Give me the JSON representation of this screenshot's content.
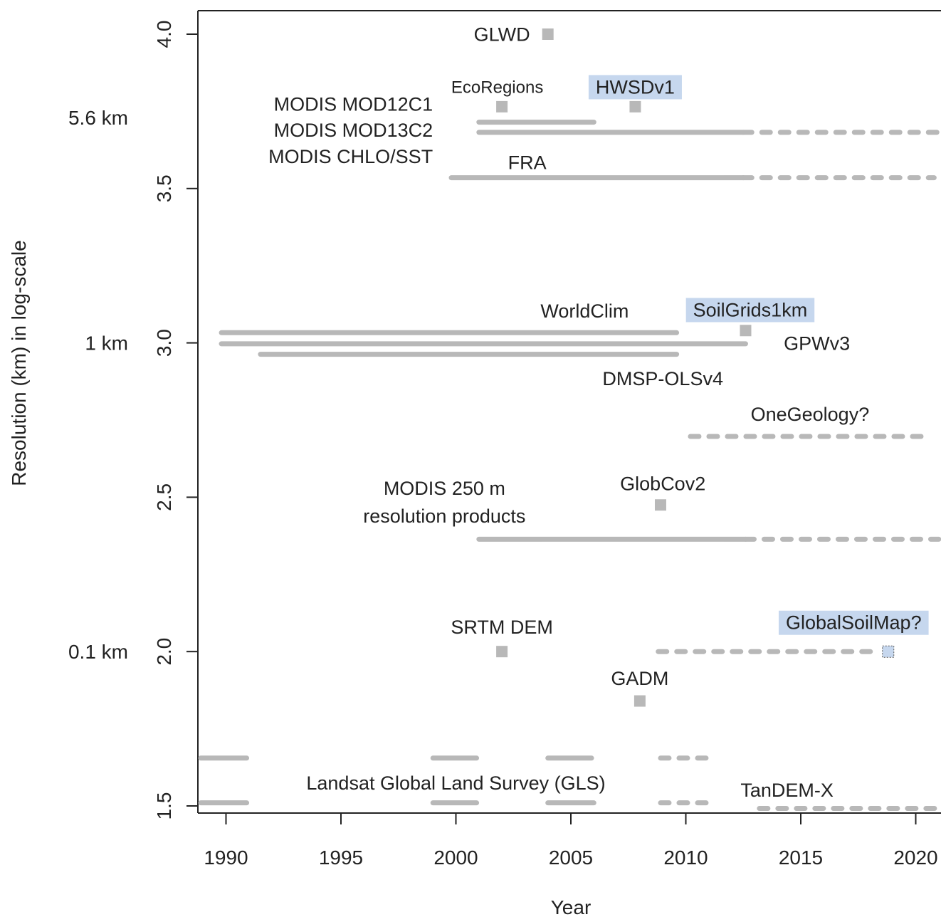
{
  "chart_data": {
    "type": "timeline",
    "xlabel": "Year",
    "ylabel": "Resolution (km) in log-scale",
    "xlim": [
      1988.9,
      2021
    ],
    "ylim": [
      1.48,
      4.08
    ],
    "x_ticks": [
      1990,
      1995,
      2000,
      2005,
      2010,
      2015,
      2020
    ],
    "y_ticks": [
      1.5,
      2.0,
      2.5,
      3.0,
      3.5,
      4.0
    ],
    "y_side_labels": [
      {
        "y": 3.73,
        "text": "5.6 km"
      },
      {
        "y": 3.0,
        "text": "1 km"
      },
      {
        "y": 2.0,
        "text": "0.1 km"
      }
    ],
    "colors": {
      "mark": "#b8b8b8",
      "highlight": "#c6d7ee",
      "axis": "#222222"
    },
    "segments": [
      {
        "name": "MODIS MOD12C1",
        "y": 3.715,
        "x0": 2001,
        "x1": 2006,
        "style": "solid",
        "width": 7
      },
      {
        "name": "MODIS MOD13C2",
        "y": 3.682,
        "x0": 2001,
        "x1": 2012.5,
        "style": "solid",
        "width": 7
      },
      {
        "name": "MODIS MOD13C2 (planned)",
        "y": 3.682,
        "x0": 2012.5,
        "x1": 2021,
        "style": "dashed",
        "width": 7
      },
      {
        "name": "MODIS CHLO/SST",
        "y": 3.535,
        "x0": 1999.8,
        "x1": 2012.5,
        "style": "solid",
        "width": 7
      },
      {
        "name": "MODIS CHLO/SST (planned)",
        "y": 3.535,
        "x0": 2012.5,
        "x1": 2020.8,
        "style": "dashed",
        "width": 7
      },
      {
        "name": "WorldClim",
        "y": 3.033,
        "x0": 1989.8,
        "x1": 2009.6,
        "style": "solid",
        "width": 7
      },
      {
        "name": "GPWv3",
        "y": 2.997,
        "x0": 1989.8,
        "x1": 2012.6,
        "style": "solid",
        "width": 7
      },
      {
        "name": "DMSP-OLSv4",
        "y": 2.963,
        "x0": 1991.5,
        "x1": 2009.6,
        "style": "solid",
        "width": 7
      },
      {
        "name": "OneGeology?",
        "y": 2.697,
        "x0": 2010.2,
        "x1": 2020.6,
        "style": "dashed",
        "width": 7
      },
      {
        "name": "MODIS 250 m",
        "y": 2.364,
        "x0": 2001,
        "x1": 2012.6,
        "style": "solid",
        "width": 7
      },
      {
        "name": "MODIS 250 m (planned)",
        "y": 2.364,
        "x0": 2012.6,
        "x1": 2021,
        "style": "dashed",
        "width": 7
      },
      {
        "name": "GlobalSoilMap?",
        "y": 2.0,
        "x0": 2008.8,
        "x1": 2018.4,
        "style": "dashed",
        "width": 7
      },
      {
        "name": "GLS 1990 a",
        "y": 1.655,
        "x0": 1988.9,
        "x1": 1990.9,
        "style": "solid",
        "width": 7
      },
      {
        "name": "GLS 2000 a",
        "y": 1.655,
        "x0": 1999.0,
        "x1": 2000.9,
        "style": "solid",
        "width": 7
      },
      {
        "name": "GLS 2005 a",
        "y": 1.655,
        "x0": 2004.0,
        "x1": 2005.9,
        "style": "solid",
        "width": 7
      },
      {
        "name": "GLS 2010 a",
        "y": 1.655,
        "x0": 2008.9,
        "x1": 2010.9,
        "style": "dashed",
        "width": 7
      },
      {
        "name": "GLS 1990 b",
        "y": 1.51,
        "x0": 1988.9,
        "x1": 1990.9,
        "style": "solid",
        "width": 7
      },
      {
        "name": "GLS 2000 b",
        "y": 1.51,
        "x0": 1999.0,
        "x1": 2000.9,
        "style": "solid",
        "width": 7
      },
      {
        "name": "GLS 2005 b",
        "y": 1.51,
        "x0": 2004.0,
        "x1": 2006.0,
        "style": "solid",
        "width": 7
      },
      {
        "name": "GLS 2010 b",
        "y": 1.51,
        "x0": 2008.9,
        "x1": 2010.9,
        "style": "dashed",
        "width": 7
      },
      {
        "name": "TanDEM-X",
        "y": 1.492,
        "x0": 2013.2,
        "x1": 2021,
        "style": "dashed",
        "width": 7
      }
    ],
    "points": [
      {
        "name": "GLWD",
        "x": 2004.0,
        "y": 4.0
      },
      {
        "name": "EcoRegions",
        "x": 2002.0,
        "y": 3.765
      },
      {
        "name": "HWSDv1",
        "x": 2007.8,
        "y": 3.765
      },
      {
        "name": "SoilGrids1km",
        "x": 2012.6,
        "y": 3.04
      },
      {
        "name": "GlobCov2",
        "x": 2008.9,
        "y": 2.475
      },
      {
        "name": "SRTM DEM",
        "x": 2002.0,
        "y": 2.0
      },
      {
        "name": "GADM",
        "x": 2008.0,
        "y": 1.84
      }
    ],
    "open_points": [
      {
        "name": "GlobalSoilMap?",
        "x": 2018.8,
        "y": 2.0
      }
    ],
    "annotations": [
      {
        "text": "GLWD",
        "x": 2002.0,
        "y": 4.0,
        "anchor": "middle",
        "highlight": false,
        "size": "normal"
      },
      {
        "text": "EcoRegions",
        "x": 2001.8,
        "y": 3.83,
        "anchor": "middle",
        "highlight": false,
        "size": "small"
      },
      {
        "text": "HWSDv1",
        "x": 2007.8,
        "y": 3.83,
        "anchor": "middle",
        "highlight": true,
        "size": "normal"
      },
      {
        "text": "MODIS MOD12C1",
        "x": 1999.0,
        "y": 3.775,
        "anchor": "end",
        "highlight": false,
        "size": "normal"
      },
      {
        "text": "MODIS MOD13C2",
        "x": 1999.0,
        "y": 3.69,
        "anchor": "end",
        "highlight": false,
        "size": "normal"
      },
      {
        "text": "MODIS CHLO/SST",
        "x": 1999.0,
        "y": 3.605,
        "anchor": "end",
        "highlight": false,
        "size": "normal"
      },
      {
        "text": "FRA",
        "x": 2003.1,
        "y": 3.585,
        "anchor": "middle",
        "highlight": false,
        "size": "normal"
      },
      {
        "text": "WorldClim",
        "x": 2005.6,
        "y": 3.105,
        "anchor": "middle",
        "highlight": false,
        "size": "normal"
      },
      {
        "text": "SoilGrids1km",
        "x": 2012.8,
        "y": 3.108,
        "anchor": "middle",
        "highlight": true,
        "size": "normal"
      },
      {
        "text": "GPWv3",
        "x": 2015.7,
        "y": 3.0,
        "anchor": "middle",
        "highlight": false,
        "size": "normal"
      },
      {
        "text": "DMSP-OLSv4",
        "x": 2009.0,
        "y": 2.885,
        "anchor": "middle",
        "highlight": false,
        "size": "normal"
      },
      {
        "text": "OneGeology?",
        "x": 2015.4,
        "y": 2.77,
        "anchor": "middle",
        "highlight": false,
        "size": "normal"
      },
      {
        "text": "GlobCov2",
        "x": 2009.0,
        "y": 2.545,
        "anchor": "middle",
        "highlight": false,
        "size": "normal"
      },
      {
        "text": "MODIS 250 m",
        "x": 1999.5,
        "y": 2.53,
        "anchor": "middle",
        "highlight": false,
        "size": "normal"
      },
      {
        "text": "resolution products",
        "x": 1999.5,
        "y": 2.44,
        "anchor": "middle",
        "highlight": false,
        "size": "normal"
      },
      {
        "text": "SRTM DEM",
        "x": 2002.0,
        "y": 2.08,
        "anchor": "middle",
        "highlight": false,
        "size": "normal"
      },
      {
        "text": "GlobalSoilMap?",
        "x": 2017.3,
        "y": 2.095,
        "anchor": "middle",
        "highlight": true,
        "size": "normal"
      },
      {
        "text": "GADM",
        "x": 2008.0,
        "y": 1.915,
        "anchor": "middle",
        "highlight": false,
        "size": "normal"
      },
      {
        "text": "Landsat Global Land Survey (GLS)",
        "x": 2000.0,
        "y": 1.575,
        "anchor": "middle",
        "highlight": false,
        "size": "normal"
      },
      {
        "text": "TanDEM-X",
        "x": 2014.4,
        "y": 1.552,
        "anchor": "middle",
        "highlight": false,
        "size": "normal"
      }
    ]
  }
}
